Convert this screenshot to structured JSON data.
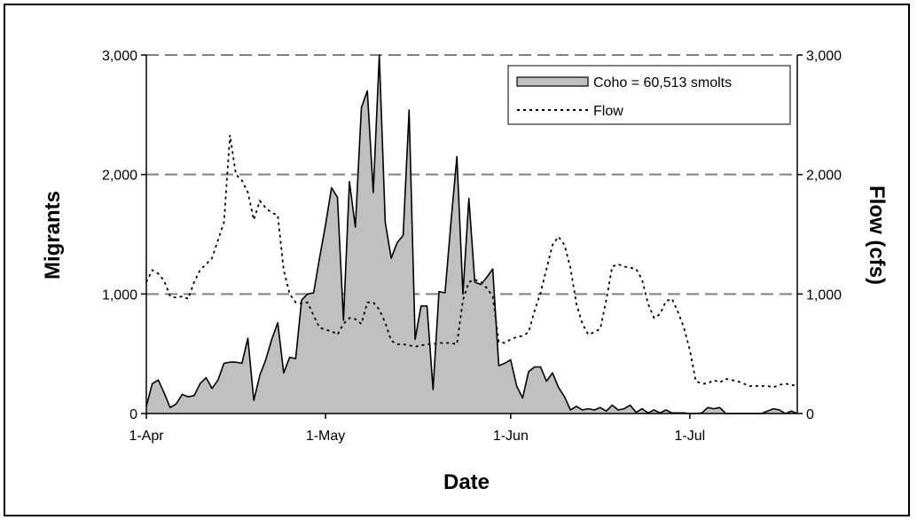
{
  "chart_data": {
    "type": "area",
    "xlabel": "Date",
    "ylabel": "Migrants",
    "y2label": "Flow (cfs)",
    "x_ticks": [
      {
        "label": "1-Apr",
        "day": 0
      },
      {
        "label": "1-May",
        "day": 30
      },
      {
        "label": "1-Jun",
        "day": 61
      },
      {
        "label": "1-Jul",
        "day": 91
      }
    ],
    "x_range_days": [
      0,
      109
    ],
    "ylim": [
      0,
      3000
    ],
    "y2lim": [
      0,
      3000
    ],
    "y_ticks": [
      "0",
      "1,000",
      "2,000",
      "3,000"
    ],
    "y2_ticks": [
      "0",
      "1,000",
      "2,000",
      "3,000"
    ],
    "grid": "horizontal dashed at 1,000 / 2,000 / 3,000",
    "legend_position": "top-right",
    "series": [
      {
        "name": "Coho = 60,513 smolts",
        "style": "area",
        "fill": "#c0c0c0",
        "points": [
          [
            0,
            60
          ],
          [
            1,
            250
          ],
          [
            2,
            280
          ],
          [
            3,
            170
          ],
          [
            4,
            50
          ],
          [
            5,
            80
          ],
          [
            6,
            160
          ],
          [
            7,
            140
          ],
          [
            8,
            150
          ],
          [
            9,
            250
          ],
          [
            10,
            300
          ],
          [
            11,
            210
          ],
          [
            12,
            280
          ],
          [
            13,
            420
          ],
          [
            14,
            430
          ],
          [
            15,
            430
          ],
          [
            16,
            420
          ],
          [
            17,
            630
          ],
          [
            18,
            110
          ],
          [
            19,
            320
          ],
          [
            20,
            450
          ],
          [
            21,
            620
          ],
          [
            22,
            760
          ],
          [
            23,
            340
          ],
          [
            24,
            470
          ],
          [
            25,
            460
          ],
          [
            26,
            950
          ],
          [
            27,
            1000
          ],
          [
            28,
            1010
          ],
          [
            29,
            1300
          ],
          [
            30,
            1580
          ],
          [
            31,
            1890
          ],
          [
            32,
            1810
          ],
          [
            33,
            780
          ],
          [
            34,
            1940
          ],
          [
            35,
            1560
          ],
          [
            36,
            2560
          ],
          [
            37,
            2700
          ],
          [
            38,
            1850
          ],
          [
            39,
            3000
          ],
          [
            40,
            1600
          ],
          [
            41,
            1300
          ],
          [
            42,
            1430
          ],
          [
            43,
            1490
          ],
          [
            44,
            2540
          ],
          [
            45,
            620
          ],
          [
            46,
            900
          ],
          [
            47,
            900
          ],
          [
            48,
            200
          ],
          [
            49,
            1020
          ],
          [
            50,
            1010
          ],
          [
            51,
            1600
          ],
          [
            52,
            2150
          ],
          [
            53,
            1000
          ],
          [
            54,
            1800
          ],
          [
            55,
            1100
          ],
          [
            56,
            1080
          ],
          [
            57,
            1140
          ],
          [
            58,
            1210
          ],
          [
            59,
            400
          ],
          [
            60,
            420
          ],
          [
            61,
            450
          ],
          [
            62,
            230
          ],
          [
            63,
            130
          ],
          [
            64,
            350
          ],
          [
            65,
            390
          ],
          [
            66,
            390
          ],
          [
            67,
            270
          ],
          [
            68,
            340
          ],
          [
            69,
            220
          ],
          [
            70,
            140
          ],
          [
            71,
            30
          ],
          [
            72,
            60
          ],
          [
            73,
            30
          ],
          [
            74,
            40
          ],
          [
            75,
            30
          ],
          [
            76,
            50
          ],
          [
            77,
            20
          ],
          [
            78,
            70
          ],
          [
            79,
            30
          ],
          [
            80,
            40
          ],
          [
            81,
            70
          ],
          [
            82,
            10
          ],
          [
            83,
            40
          ],
          [
            84,
            5
          ],
          [
            85,
            30
          ],
          [
            86,
            5
          ],
          [
            87,
            30
          ],
          [
            88,
            5
          ],
          [
            89,
            5
          ],
          [
            90,
            5
          ],
          [
            91,
            0
          ],
          [
            92,
            0
          ],
          [
            93,
            5
          ],
          [
            94,
            50
          ],
          [
            95,
            40
          ],
          [
            96,
            50
          ],
          [
            97,
            0
          ],
          [
            98,
            0
          ],
          [
            99,
            0
          ],
          [
            100,
            0
          ],
          [
            101,
            0
          ],
          [
            102,
            0
          ],
          [
            103,
            0
          ],
          [
            104,
            20
          ],
          [
            105,
            40
          ],
          [
            106,
            30
          ],
          [
            107,
            0
          ],
          [
            108,
            20
          ],
          [
            109,
            0
          ]
        ]
      },
      {
        "name": "Flow",
        "style": "dotted-line",
        "points": [
          [
            0,
            1100
          ],
          [
            1,
            1200
          ],
          [
            2,
            1170
          ],
          [
            3,
            1110
          ],
          [
            4,
            980
          ],
          [
            5,
            970
          ],
          [
            6,
            980
          ],
          [
            7,
            960
          ],
          [
            8,
            1100
          ],
          [
            9,
            1200
          ],
          [
            10,
            1250
          ],
          [
            11,
            1300
          ],
          [
            12,
            1450
          ],
          [
            13,
            1600
          ],
          [
            14,
            2330
          ],
          [
            15,
            2000
          ],
          [
            16,
            1950
          ],
          [
            17,
            1850
          ],
          [
            18,
            1620
          ],
          [
            19,
            1780
          ],
          [
            20,
            1720
          ],
          [
            21,
            1680
          ],
          [
            22,
            1660
          ],
          [
            23,
            1200
          ],
          [
            24,
            1000
          ],
          [
            25,
            930
          ],
          [
            26,
            920
          ],
          [
            27,
            930
          ],
          [
            28,
            820
          ],
          [
            29,
            720
          ],
          [
            30,
            700
          ],
          [
            31,
            690
          ],
          [
            32,
            660
          ],
          [
            33,
            750
          ],
          [
            34,
            800
          ],
          [
            35,
            790
          ],
          [
            36,
            750
          ],
          [
            37,
            930
          ],
          [
            38,
            930
          ],
          [
            39,
            870
          ],
          [
            40,
            760
          ],
          [
            41,
            610
          ],
          [
            42,
            580
          ],
          [
            43,
            580
          ],
          [
            44,
            570
          ],
          [
            45,
            560
          ],
          [
            46,
            570
          ],
          [
            47,
            580
          ],
          [
            48,
            580
          ],
          [
            49,
            590
          ],
          [
            50,
            590
          ],
          [
            51,
            590
          ],
          [
            52,
            580
          ],
          [
            53,
            950
          ],
          [
            54,
            1100
          ],
          [
            55,
            1120
          ],
          [
            56,
            1100
          ],
          [
            57,
            1050
          ],
          [
            58,
            980
          ],
          [
            59,
            600
          ],
          [
            60,
            590
          ],
          [
            61,
            620
          ],
          [
            62,
            640
          ],
          [
            63,
            650
          ],
          [
            64,
            680
          ],
          [
            65,
            860
          ],
          [
            66,
            1010
          ],
          [
            67,
            1210
          ],
          [
            68,
            1410
          ],
          [
            69,
            1480
          ],
          [
            70,
            1410
          ],
          [
            71,
            1220
          ],
          [
            72,
            920
          ],
          [
            73,
            750
          ],
          [
            74,
            660
          ],
          [
            75,
            680
          ],
          [
            76,
            710
          ],
          [
            77,
            950
          ],
          [
            78,
            1230
          ],
          [
            79,
            1250
          ],
          [
            80,
            1230
          ],
          [
            81,
            1220
          ],
          [
            82,
            1210
          ],
          [
            83,
            1120
          ],
          [
            84,
            920
          ],
          [
            85,
            800
          ],
          [
            86,
            830
          ],
          [
            87,
            940
          ],
          [
            88,
            960
          ],
          [
            89,
            850
          ],
          [
            90,
            720
          ],
          [
            91,
            530
          ],
          [
            92,
            270
          ],
          [
            93,
            250
          ],
          [
            94,
            250
          ],
          [
            95,
            280
          ],
          [
            96,
            260
          ],
          [
            97,
            290
          ],
          [
            98,
            280
          ],
          [
            99,
            270
          ],
          [
            100,
            250
          ],
          [
            101,
            230
          ],
          [
            102,
            230
          ],
          [
            103,
            230
          ],
          [
            104,
            230
          ],
          [
            105,
            220
          ],
          [
            106,
            240
          ],
          [
            107,
            250
          ],
          [
            108,
            240
          ],
          [
            109,
            230
          ]
        ]
      }
    ]
  }
}
